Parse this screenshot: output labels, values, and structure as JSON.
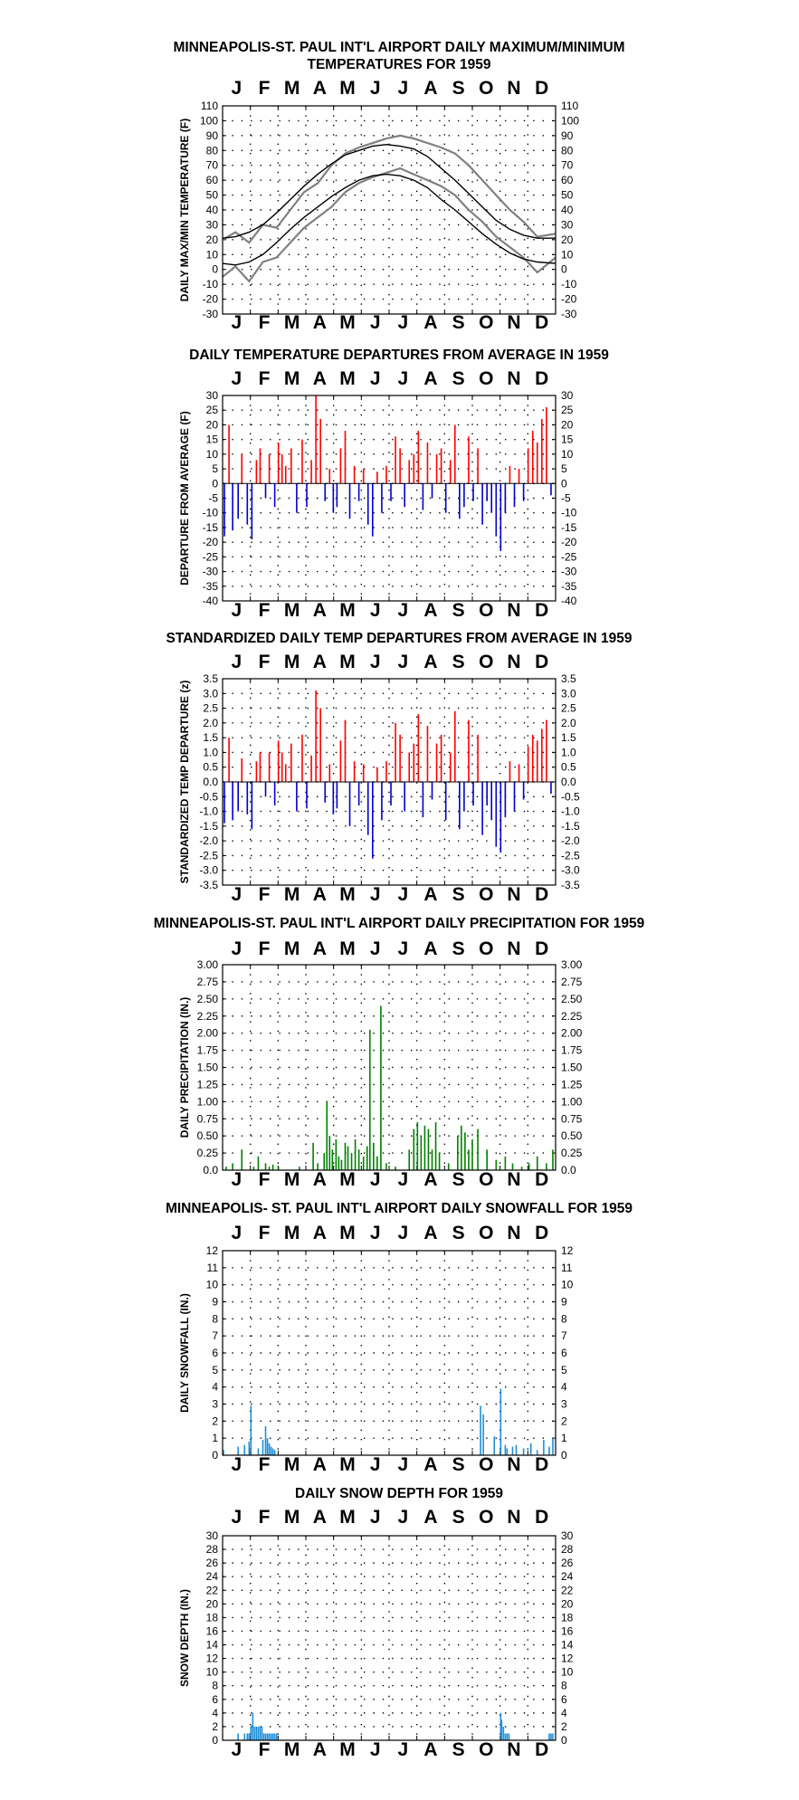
{
  "chart_data": [
    {
      "type": "line",
      "title": "MINNEAPOLIS-ST. PAUL INT'L AIRPORT DAILY MAXIMUM/MINIMUM",
      "title_line2": "TEMPERATURES FOR 1959",
      "ylabel": "DAILY MAX/MIN TEMPERATURE (F)",
      "months": [
        "J",
        "F",
        "M",
        "A",
        "M",
        "J",
        "J",
        "A",
        "S",
        "O",
        "N",
        "D"
      ],
      "ylim": [
        -30,
        110
      ],
      "yticks": [
        "-30",
        "-20",
        "-10",
        "0",
        "10",
        "20",
        "30",
        "40",
        "50",
        "60",
        "70",
        "80",
        "90",
        "100",
        "110"
      ],
      "grid": true,
      "series": [
        {
          "color": "#808080",
          "x": [
            1,
            15,
            30,
            45,
            60,
            75,
            90,
            105,
            120,
            135,
            150,
            165,
            180,
            195,
            210,
            225,
            240,
            255,
            270,
            285,
            300,
            315,
            330,
            345,
            365
          ],
          "values": [
            20,
            25,
            18,
            30,
            28,
            40,
            52,
            58,
            70,
            78,
            82,
            85,
            88,
            90,
            88,
            85,
            82,
            78,
            70,
            60,
            50,
            40,
            32,
            22,
            24
          ]
        },
        {
          "color": "#808080",
          "x": [
            1,
            15,
            30,
            45,
            60,
            75,
            90,
            105,
            120,
            135,
            150,
            165,
            180,
            195,
            210,
            225,
            240,
            255,
            270,
            285,
            300,
            315,
            330,
            345,
            365
          ],
          "values": [
            -5,
            2,
            -8,
            5,
            8,
            18,
            28,
            35,
            42,
            52,
            58,
            62,
            65,
            68,
            64,
            60,
            56,
            50,
            40,
            32,
            22,
            15,
            8,
            -2,
            8
          ]
        },
        {
          "color": "#000000",
          "x": [
            1,
            15,
            30,
            45,
            60,
            75,
            90,
            105,
            120,
            135,
            150,
            165,
            180,
            195,
            210,
            225,
            240,
            255,
            270,
            285,
            300,
            315,
            330,
            345,
            365
          ],
          "values": [
            21,
            22,
            25,
            30,
            38,
            47,
            56,
            64,
            71,
            77,
            80,
            83,
            84,
            83,
            81,
            76,
            68,
            60,
            51,
            42,
            33,
            27,
            23,
            21,
            21
          ]
        },
        {
          "color": "#000000",
          "x": [
            1,
            15,
            30,
            45,
            60,
            75,
            90,
            105,
            120,
            135,
            150,
            165,
            180,
            195,
            210,
            225,
            240,
            255,
            270,
            285,
            300,
            315,
            330,
            345,
            365
          ],
          "values": [
            4,
            3,
            5,
            10,
            18,
            27,
            35,
            42,
            49,
            55,
            60,
            63,
            64,
            63,
            60,
            55,
            47,
            40,
            32,
            24,
            17,
            11,
            7,
            5,
            4
          ]
        }
      ]
    },
    {
      "type": "bar",
      "title": "DAILY TEMPERATURE DEPARTURES FROM AVERAGE IN 1959",
      "ylabel": "DEPARTURE FROM AVERAGE (F)",
      "months": [
        "J",
        "F",
        "M",
        "A",
        "M",
        "J",
        "J",
        "A",
        "S",
        "O",
        "N",
        "D"
      ],
      "ylim": [
        -40,
        30
      ],
      "yticks_left": [
        "-40",
        "-35",
        "-30",
        "-25",
        "-20",
        "-15",
        "-10",
        "-5",
        "0",
        "5",
        "10",
        "15",
        "20",
        "25",
        "30"
      ],
      "yticks_right": [
        "-40",
        "-35",
        "-30",
        "-25",
        "-20",
        "-15",
        "-10",
        "-5",
        "0",
        "5",
        "10",
        "15",
        "20",
        "25",
        "30"
      ],
      "grid": true,
      "pos_color": "#ff0000",
      "neg_color": "#0000cc",
      "x": [
        3,
        8,
        12,
        18,
        22,
        28,
        33,
        38,
        42,
        48,
        52,
        58,
        62,
        66,
        70,
        76,
        82,
        88,
        93,
        98,
        103,
        108,
        113,
        118,
        122,
        126,
        130,
        135,
        140,
        145,
        150,
        155,
        160,
        165,
        170,
        175,
        180,
        185,
        190,
        195,
        200,
        205,
        210,
        215,
        220,
        225,
        230,
        235,
        240,
        245,
        250,
        255,
        260,
        265,
        270,
        275,
        280,
        285,
        290,
        295,
        300,
        305,
        310,
        315,
        320,
        325,
        330,
        335,
        340,
        345,
        350,
        355,
        360
      ],
      "values": [
        -18,
        20,
        -16,
        -12,
        10,
        -14,
        -19,
        8,
        12,
        -5,
        10,
        -8,
        14,
        10,
        6,
        12,
        -10,
        15,
        -8,
        8,
        30,
        22,
        -6,
        5,
        -10,
        -8,
        12,
        18,
        -12,
        6,
        -6,
        5,
        -14,
        -18,
        4,
        -10,
        6,
        -6,
        16,
        12,
        -8,
        8,
        10,
        18,
        -9,
        14,
        -5,
        10,
        12,
        -10,
        8,
        20,
        -12,
        -8,
        16,
        -6,
        12,
        -14,
        -6,
        -10,
        -18,
        -23,
        -10,
        6,
        -8,
        5,
        -6,
        12,
        18,
        14,
        22,
        26,
        -4
      ]
    },
    {
      "type": "bar",
      "title": "STANDARDIZED DAILY TEMP DEPARTURES FROM AVERAGE IN 1959",
      "ylabel": "STANDARDIZED TEMP DEPARTURE (z)",
      "months": [
        "J",
        "F",
        "M",
        "A",
        "M",
        "J",
        "J",
        "A",
        "S",
        "O",
        "N",
        "D"
      ],
      "ylim": [
        -3.5,
        3.5
      ],
      "yticks_left": [
        "-3.5",
        "-3.0",
        "-2.5",
        "-2.0",
        "-1.5",
        "-1.0",
        "-0.5",
        "0.0",
        "0.5",
        "1.0",
        "1.5",
        "2.0",
        "2.5",
        "3.0",
        "3.5"
      ],
      "yticks_right": [
        "-3.5",
        "-3.0",
        "-2.5",
        "-2.0",
        "-1.5",
        "-1.0",
        "-0.5",
        "0.0",
        "0.5",
        "1.0",
        "1.5",
        "2.0",
        "2.5",
        "3.0",
        "3.5"
      ],
      "grid": true,
      "pos_color": "#ff0000",
      "neg_color": "#0000cc",
      "x": [
        3,
        8,
        12,
        18,
        22,
        28,
        33,
        38,
        42,
        48,
        52,
        58,
        62,
        66,
        70,
        76,
        82,
        88,
        93,
        98,
        103,
        108,
        113,
        118,
        122,
        126,
        130,
        135,
        140,
        145,
        150,
        155,
        160,
        165,
        170,
        175,
        180,
        185,
        190,
        195,
        200,
        205,
        210,
        215,
        220,
        225,
        230,
        235,
        240,
        245,
        250,
        255,
        260,
        265,
        270,
        275,
        280,
        285,
        290,
        295,
        300,
        305,
        310,
        315,
        320,
        325,
        330,
        335,
        340,
        345,
        350,
        355,
        360
      ],
      "values": [
        -1.4,
        1.5,
        -1.3,
        -1.0,
        0.8,
        -1.1,
        -1.6,
        0.7,
        1.0,
        -0.5,
        1.0,
        -0.8,
        1.4,
        1.0,
        0.6,
        1.3,
        -1.0,
        1.6,
        -0.9,
        0.9,
        3.1,
        2.5,
        -0.7,
        0.6,
        -1.1,
        -0.9,
        1.4,
        2.1,
        -1.5,
        0.7,
        -0.8,
        0.6,
        -1.8,
        -2.6,
        0.5,
        -1.3,
        0.7,
        -0.8,
        2.0,
        1.6,
        -1.0,
        1.0,
        1.3,
        2.3,
        -1.2,
        1.9,
        -0.6,
        1.3,
        1.6,
        -1.3,
        1.0,
        2.4,
        -1.6,
        -1.0,
        2.1,
        -0.8,
        1.6,
        -1.8,
        -0.8,
        -1.3,
        -2.2,
        -2.4,
        -1.2,
        0.7,
        -1.0,
        0.6,
        -0.6,
        1.2,
        1.6,
        1.4,
        1.8,
        2.1,
        -0.4
      ]
    },
    {
      "type": "bar",
      "title": "MINNEAPOLIS-ST. PAUL INT'L AIRPORT DAILY PRECIPITATION FOR 1959",
      "ylabel": "DAILY PRECIPITATION (IN.)",
      "months": [
        "J",
        "F",
        "M",
        "A",
        "M",
        "J",
        "J",
        "A",
        "S",
        "O",
        "N",
        "D"
      ],
      "ylim": [
        0,
        3.0
      ],
      "yticks": [
        "0.0",
        "0.25",
        "0.50",
        "0.75",
        "1.00",
        "1.25",
        "1.50",
        "1.75",
        "2.00",
        "2.25",
        "2.50",
        "2.75",
        "3.00"
      ],
      "grid": true,
      "bar_color": "#008000",
      "x": [
        5,
        12,
        22,
        35,
        40,
        48,
        52,
        56,
        62,
        85,
        100,
        105,
        112,
        115,
        118,
        121,
        125,
        128,
        131,
        135,
        138,
        142,
        146,
        150,
        155,
        159,
        162,
        166,
        170,
        174,
        180,
        190,
        205,
        210,
        214,
        218,
        222,
        226,
        230,
        234,
        238,
        248,
        258,
        262,
        266,
        270,
        274,
        280,
        290,
        300,
        310,
        318,
        328,
        336,
        345,
        355,
        362
      ],
      "values": [
        0.05,
        0.1,
        0.3,
        0.05,
        0.2,
        0.1,
        0.05,
        0.08,
        0.05,
        0.05,
        0.4,
        0.1,
        0.25,
        1.0,
        0.5,
        0.3,
        0.45,
        0.2,
        0.15,
        0.4,
        0.35,
        0.25,
        0.45,
        0.3,
        0.2,
        0.35,
        2.05,
        0.4,
        0.2,
        2.4,
        0.1,
        0.05,
        0.3,
        0.6,
        0.7,
        0.5,
        0.65,
        0.6,
        0.3,
        0.7,
        0.25,
        0.1,
        0.5,
        0.65,
        0.55,
        0.3,
        0.45,
        0.6,
        0.3,
        0.15,
        0.2,
        0.1,
        0.05,
        0.1,
        0.2,
        0.1,
        0.3
      ]
    },
    {
      "type": "bar",
      "title": "MINNEAPOLIS- ST. PAUL INT'L AIRPORT DAILY SNOWFALL FOR 1959",
      "ylabel": "DAILY SNOWFALL (IN.)",
      "months": [
        "J",
        "F",
        "M",
        "A",
        "M",
        "J",
        "J",
        "A",
        "S",
        "O",
        "N",
        "D"
      ],
      "ylim": [
        0,
        12
      ],
      "yticks": [
        "0",
        "1",
        "2",
        "3",
        "4",
        "5",
        "6",
        "7",
        "8",
        "9",
        "10",
        "11",
        "12"
      ],
      "grid": true,
      "bar_color": "#1e8fd6",
      "x": [
        2,
        18,
        25,
        30,
        32,
        40,
        45,
        48,
        50,
        52,
        54,
        56,
        58,
        283,
        286,
        298,
        305,
        310,
        312,
        318,
        322,
        330,
        338,
        345,
        352,
        358,
        362
      ],
      "values": [
        0.3,
        0.5,
        0.6,
        0.8,
        2.9,
        0.4,
        0.9,
        1.7,
        1.0,
        0.7,
        0.5,
        0.4,
        0.3,
        2.9,
        2.4,
        1.1,
        3.9,
        0.6,
        0.4,
        0.5,
        0.6,
        0.4,
        0.7,
        0.3,
        0.9,
        0.5,
        1.0
      ]
    },
    {
      "type": "bar",
      "title": "DAILY SNOW DEPTH FOR 1959",
      "ylabel": "SNOW DEPTH (IN.)",
      "months": [
        "J",
        "F",
        "M",
        "A",
        "M",
        "J",
        "J",
        "A",
        "S",
        "O",
        "N",
        "D"
      ],
      "ylim": [
        0,
        30
      ],
      "yticks": [
        "0",
        "2",
        "4",
        "6",
        "8",
        "10",
        "12",
        "14",
        "16",
        "18",
        "20",
        "22",
        "24",
        "26",
        "28",
        "30"
      ],
      "grid": true,
      "bar_color": "#1e8fd6",
      "x": [
        18,
        25,
        28,
        30,
        32,
        34,
        36,
        38,
        40,
        42,
        44,
        46,
        48,
        50,
        52,
        54,
        56,
        58,
        60,
        305,
        306,
        308,
        310,
        312,
        314,
        358,
        360,
        362
      ],
      "values": [
        1,
        1,
        1,
        1,
        2,
        4,
        2,
        2,
        2,
        2,
        2,
        1,
        1,
        1,
        1,
        1,
        1,
        1,
        1,
        4,
        3,
        2,
        1,
        1,
        1,
        1,
        1,
        1
      ]
    }
  ]
}
